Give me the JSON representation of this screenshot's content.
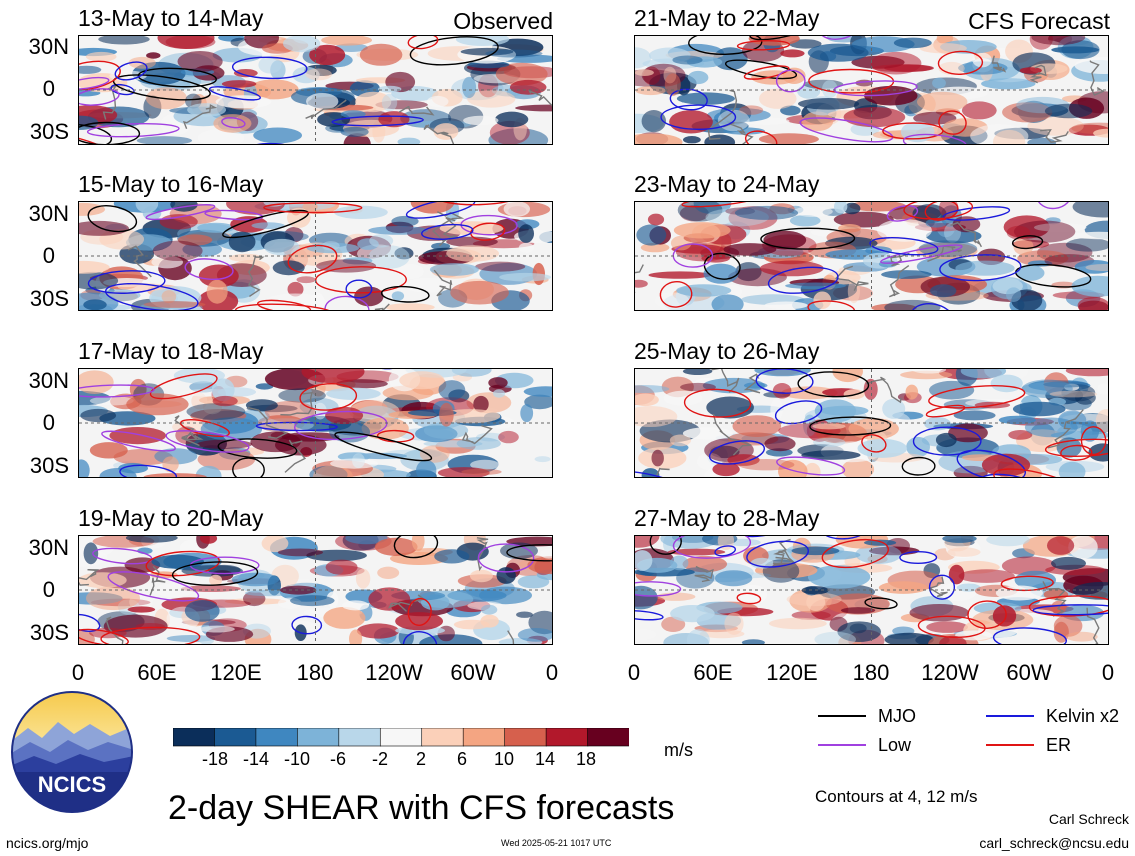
{
  "panel_labels": {
    "observed": "Observed",
    "forecast": "CFS Forecast"
  },
  "panels": [
    {
      "title": "13-May to 14-May"
    },
    {
      "title": "15-May to 16-May"
    },
    {
      "title": "17-May to 18-May"
    },
    {
      "title": "19-May to 20-May"
    },
    {
      "title": "21-May to 22-May"
    },
    {
      "title": "23-May to 24-May"
    },
    {
      "title": "25-May to 26-May"
    },
    {
      "title": "27-May to 28-May"
    }
  ],
  "axes": {
    "lat_ticks": [
      "30N",
      "0",
      "30S"
    ],
    "lon_ticks": [
      "0",
      "60E",
      "120E",
      "180",
      "120W",
      "60W",
      "0"
    ]
  },
  "colorbar": {
    "labels": [
      "-18",
      "-14",
      "-10",
      "-6",
      "-2",
      "2",
      "6",
      "10",
      "14",
      "18"
    ],
    "units": "m/s",
    "colors": [
      "#0b2e5a",
      "#1b5a93",
      "#3f87c0",
      "#7db3d8",
      "#b9d7ea",
      "#f7f7f7",
      "#fbd0b9",
      "#f4a582",
      "#d6604d",
      "#b2182b",
      "#67001f"
    ]
  },
  "legend": {
    "items": [
      {
        "label": "MJO",
        "color": "#000000"
      },
      {
        "label": "Kelvin x2",
        "color": "#1a1adc"
      },
      {
        "label": "Low",
        "color": "#a040e0"
      },
      {
        "label": "ER",
        "color": "#e01414"
      }
    ],
    "contours_note": "Contours at 4, 12 m/s"
  },
  "footer": {
    "main_title": "2-day SHEAR with CFS forecasts",
    "logo_text": "NCICS",
    "site": "ncics.org/mjo",
    "timestamp": "Wed 2025-05-21 1017 UTC",
    "author": "Carl Schreck",
    "email": "carl_schreck@ncsu.edu"
  }
}
